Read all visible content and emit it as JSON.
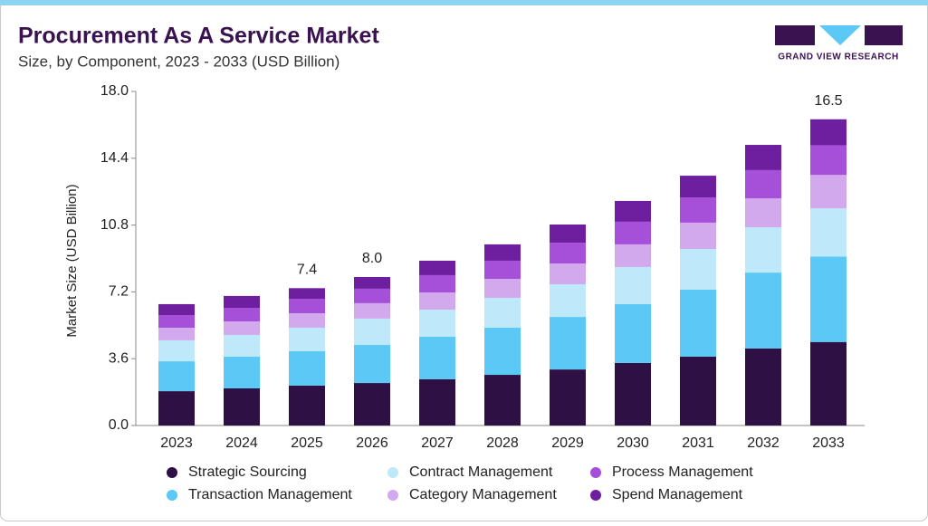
{
  "chart_data": {
    "type": "stacked_bar",
    "title": "Procurement As A Service Market",
    "subtitle": "Size, by Component, 2023 - 2033 (USD Billion)",
    "brand": "GRAND VIEW RESEARCH",
    "y_label": "Market Size (USD Billion)",
    "categories": [
      "2023",
      "2024",
      "2025",
      "2026",
      "2027",
      "2028",
      "2029",
      "2030",
      "2031",
      "2032",
      "2033"
    ],
    "series": [
      {
        "name": "Strategic Sourcing",
        "color": "#2e1045",
        "values": [
          1.85,
          2.0,
          2.15,
          2.29,
          2.49,
          2.73,
          3.02,
          3.37,
          3.71,
          4.15,
          4.5
        ]
      },
      {
        "name": "Transaction Management",
        "color": "#5bc8f5",
        "values": [
          1.61,
          1.71,
          1.85,
          2.05,
          2.29,
          2.54,
          2.83,
          3.17,
          3.61,
          4.09,
          4.6
        ]
      },
      {
        "name": "Contract Management",
        "color": "#bde9fa",
        "values": [
          1.13,
          1.17,
          1.27,
          1.42,
          1.46,
          1.61,
          1.76,
          2.0,
          2.19,
          2.44,
          2.6
        ]
      },
      {
        "name": "Category Management",
        "color": "#d3a9ed",
        "values": [
          0.68,
          0.73,
          0.78,
          0.83,
          0.93,
          1.02,
          1.12,
          1.22,
          1.42,
          1.56,
          1.8
        ]
      },
      {
        "name": "Process Management",
        "color": "#a64fd8",
        "values": [
          0.68,
          0.73,
          0.78,
          0.78,
          0.93,
          0.98,
          1.12,
          1.22,
          1.36,
          1.52,
          1.6
        ]
      },
      {
        "name": "Spend Management",
        "color": "#6e1fa0",
        "values": [
          0.59,
          0.64,
          0.57,
          0.63,
          0.78,
          0.88,
          0.98,
          1.12,
          1.17,
          1.36,
          1.4
        ]
      }
    ],
    "total_labels": [
      null,
      null,
      "7.4",
      "8.0",
      null,
      null,
      null,
      null,
      null,
      null,
      "16.5"
    ],
    "ylim": [
      0,
      18
    ],
    "yticks": [
      {
        "value": 0,
        "label": "0.0"
      },
      3.6,
      7.2,
      10.8,
      14.4,
      {
        "value": 18,
        "label": "18.0"
      }
    ]
  }
}
